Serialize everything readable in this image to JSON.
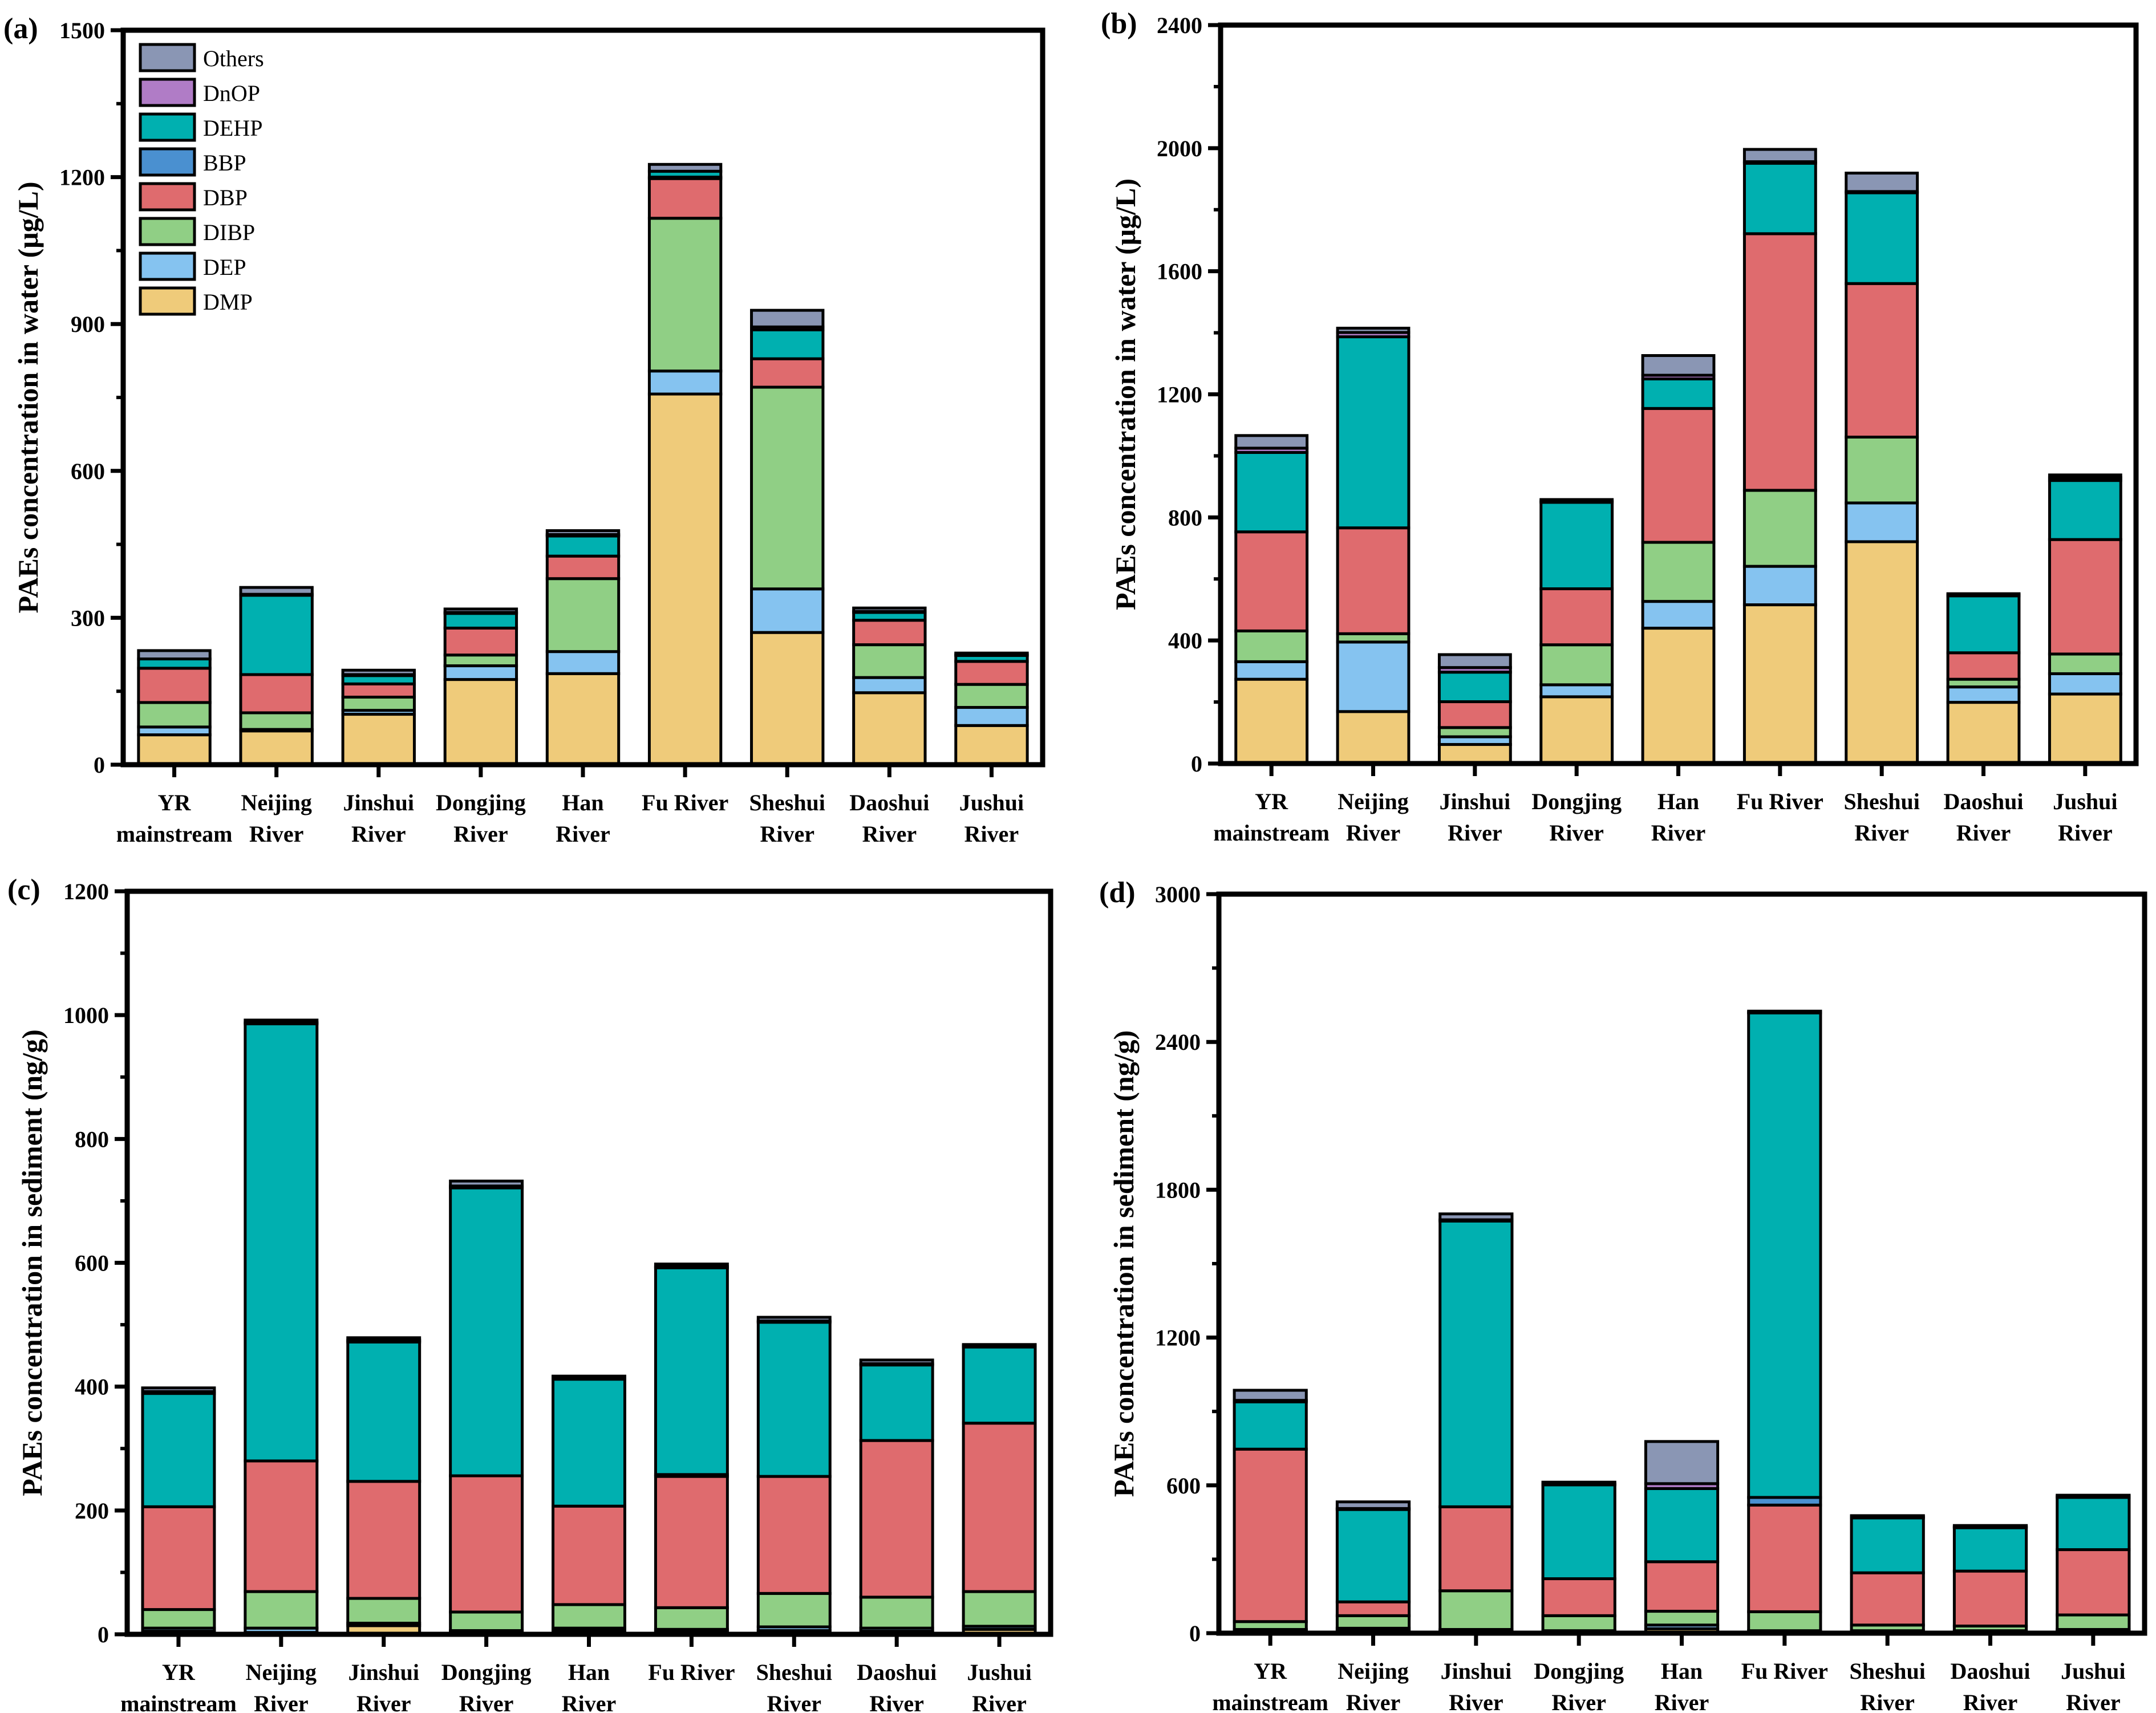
{
  "chart_data": [
    {
      "panel": "(a)",
      "type": "bar",
      "stacked": true,
      "title": "",
      "xlabel": "",
      "ylabel": "PAEs concentration in water (μg/L)",
      "ylim": [
        0,
        1500
      ],
      "yticks": [
        0,
        300,
        600,
        900,
        1200,
        1500
      ],
      "grid": false,
      "legend": "top-left",
      "categories": [
        [
          "YR",
          "mainstream"
        ],
        [
          "Neijing",
          "River"
        ],
        [
          "Jinshui",
          "River"
        ],
        [
          "Dongjing",
          "River"
        ],
        [
          "Han",
          "River"
        ],
        [
          "Fu River"
        ],
        [
          "Sheshui",
          "River"
        ],
        [
          "Daoshui",
          "River"
        ],
        [
          "Jushui",
          "River"
        ]
      ],
      "series": [
        {
          "name": "DMP",
          "values": [
            61,
            69,
            103,
            174,
            186,
            757,
            270,
            147,
            80
          ]
        },
        {
          "name": "DEP",
          "values": [
            16,
            3,
            8,
            28,
            45,
            47,
            89,
            31,
            37
          ]
        },
        {
          "name": "DIBP",
          "values": [
            50,
            34,
            27,
            22,
            149,
            312,
            412,
            67,
            47
          ]
        },
        {
          "name": "DBP",
          "values": [
            70,
            78,
            27,
            55,
            46,
            81,
            58,
            50,
            47
          ]
        },
        {
          "name": "BBP",
          "values": [
            0,
            0,
            0,
            0,
            0,
            3,
            0,
            0,
            0
          ]
        },
        {
          "name": "DEHP",
          "values": [
            19,
            162,
            17,
            30,
            41,
            12,
            59,
            16,
            12
          ]
        },
        {
          "name": "DnOP",
          "values": [
            0,
            2,
            2,
            2,
            3,
            0,
            6,
            2,
            2
          ]
        },
        {
          "name": "Others",
          "values": [
            17,
            14,
            9,
            7,
            8,
            14,
            34,
            7,
            3
          ]
        }
      ]
    },
    {
      "panel": "(b)",
      "type": "bar",
      "stacked": true,
      "title": "",
      "xlabel": "",
      "ylabel": "PAEs concentration in water (μg/L)",
      "ylim": [
        0,
        2400
      ],
      "yticks": [
        0,
        400,
        800,
        1200,
        1600,
        2000,
        2400
      ],
      "grid": false,
      "legend": "none",
      "categories": [
        [
          "YR",
          "mainstream"
        ],
        [
          "Neijing",
          "River"
        ],
        [
          "Jinshui",
          "River"
        ],
        [
          "Dongjing",
          "River"
        ],
        [
          "Han",
          "River"
        ],
        [
          "Fu River"
        ],
        [
          "Sheshui",
          "River"
        ],
        [
          "Daoshui",
          "River"
        ],
        [
          "Jushui",
          "River"
        ]
      ],
      "series": [
        {
          "name": "DMP",
          "values": [
            274,
            169,
            62,
            217,
            440,
            516,
            721,
            199,
            226
          ]
        },
        {
          "name": "DEP",
          "values": [
            57,
            226,
            25,
            39,
            87,
            125,
            126,
            50,
            66
          ]
        },
        {
          "name": "DIBP",
          "values": [
            100,
            27,
            30,
            130,
            192,
            247,
            214,
            25,
            64
          ]
        },
        {
          "name": "DBP",
          "values": [
            322,
            344,
            84,
            182,
            435,
            834,
            499,
            86,
            372
          ]
        },
        {
          "name": "BBP",
          "values": [
            0,
            0,
            0,
            0,
            0,
            0,
            0,
            0,
            0
          ]
        },
        {
          "name": "DEHP",
          "values": [
            258,
            621,
            96,
            281,
            96,
            229,
            295,
            185,
            192
          ]
        },
        {
          "name": "DnOP",
          "values": [
            14,
            14,
            15,
            4,
            12,
            5,
            4,
            3,
            9
          ]
        },
        {
          "name": "Others",
          "values": [
            41,
            14,
            42,
            5,
            64,
            40,
            60,
            4,
            9
          ]
        }
      ]
    },
    {
      "panel": "(c)",
      "type": "bar",
      "stacked": true,
      "title": "",
      "xlabel": "",
      "ylabel": "PAEs concentration in sediment (ng/g)",
      "ylim": [
        0,
        1200
      ],
      "yticks": [
        0,
        200,
        400,
        600,
        800,
        1000,
        1200
      ],
      "grid": false,
      "legend": "none",
      "categories": [
        [
          "YR",
          "mainstream"
        ],
        [
          "Neijing",
          "River"
        ],
        [
          "Jinshui",
          "River"
        ],
        [
          "Dongjing",
          "River"
        ],
        [
          "Han",
          "River"
        ],
        [
          "Fu River"
        ],
        [
          "Sheshui",
          "River"
        ],
        [
          "Daoshui",
          "River"
        ],
        [
          "Jushui",
          "River"
        ]
      ],
      "series": [
        {
          "name": "DMP",
          "values": [
            5,
            3,
            14,
            4,
            6,
            5,
            6,
            5,
            8
          ]
        },
        {
          "name": "DEP",
          "values": [
            5,
            7,
            4,
            2,
            4,
            3,
            6,
            5,
            5
          ]
        },
        {
          "name": "DIBP",
          "values": [
            30,
            59,
            40,
            30,
            38,
            35,
            54,
            50,
            56
          ]
        },
        {
          "name": "DBP",
          "values": [
            166,
            211,
            189,
            220,
            159,
            212,
            189,
            253,
            272
          ]
        },
        {
          "name": "BBP",
          "values": [
            0,
            0,
            0,
            0,
            0,
            3,
            0,
            0,
            0
          ]
        },
        {
          "name": "DEHP",
          "values": [
            183,
            706,
            225,
            465,
            205,
            334,
            249,
            122,
            123
          ]
        },
        {
          "name": "DnOP",
          "values": [
            3,
            2,
            3,
            3,
            3,
            2,
            2,
            2,
            2
          ]
        },
        {
          "name": "Others",
          "values": [
            6,
            4,
            4,
            8,
            2,
            4,
            6,
            6,
            2
          ]
        }
      ]
    },
    {
      "panel": "(d)",
      "type": "bar",
      "stacked": true,
      "title": "",
      "xlabel": "",
      "ylabel": "PAEs concentration in sediment (ng/g)",
      "ylim": [
        0,
        3000
      ],
      "yticks": [
        0,
        600,
        1200,
        1800,
        2400,
        3000
      ],
      "grid": false,
      "legend": "none",
      "categories": [
        [
          "YR",
          "mainstream"
        ],
        [
          "Neijing",
          "River"
        ],
        [
          "Jinshui",
          "River"
        ],
        [
          "Dongjing",
          "River"
        ],
        [
          "Han",
          "River"
        ],
        [
          "Fu River"
        ],
        [
          "Sheshui",
          "River"
        ],
        [
          "Daoshui",
          "River"
        ],
        [
          "Jushui",
          "River"
        ]
      ],
      "series": [
        {
          "name": "DMP",
          "values": [
            10,
            10,
            10,
            5,
            18,
            5,
            5,
            5,
            8
          ]
        },
        {
          "name": "DEP",
          "values": [
            5,
            10,
            5,
            5,
            15,
            5,
            5,
            5,
            7
          ]
        },
        {
          "name": "DIBP",
          "values": [
            32,
            51,
            157,
            61,
            56,
            77,
            23,
            19,
            59
          ]
        },
        {
          "name": "DBP",
          "values": [
            700,
            56,
            341,
            150,
            201,
            433,
            212,
            223,
            265
          ]
        },
        {
          "name": "BBP",
          "values": [
            0,
            0,
            0,
            0,
            0,
            31,
            0,
            0,
            0
          ]
        },
        {
          "name": "DEHP",
          "values": [
            192,
            375,
            1160,
            381,
            297,
            1967,
            223,
            176,
            212
          ]
        },
        {
          "name": "DnOP",
          "values": [
            6,
            4,
            5,
            4,
            20,
            2,
            4,
            4,
            4
          ]
        },
        {
          "name": "Others",
          "values": [
            41,
            27,
            24,
            7,
            171,
            5,
            5,
            5,
            5
          ]
        }
      ]
    }
  ],
  "legend": {
    "items": [
      "Others",
      "DnOP",
      "DEHP",
      "BBP",
      "DBP",
      "DIBP",
      "DEP",
      "DMP"
    ]
  },
  "colors": {
    "DMP": "#EFCB7A",
    "DEP": "#85C3F0",
    "DIBP": "#90CF85",
    "DBP": "#DF6B6E",
    "BBP": "#4A90D0",
    "DEHP": "#00B0B0",
    "DnOP": "#B07CC6",
    "Others": "#8A96B4"
  }
}
